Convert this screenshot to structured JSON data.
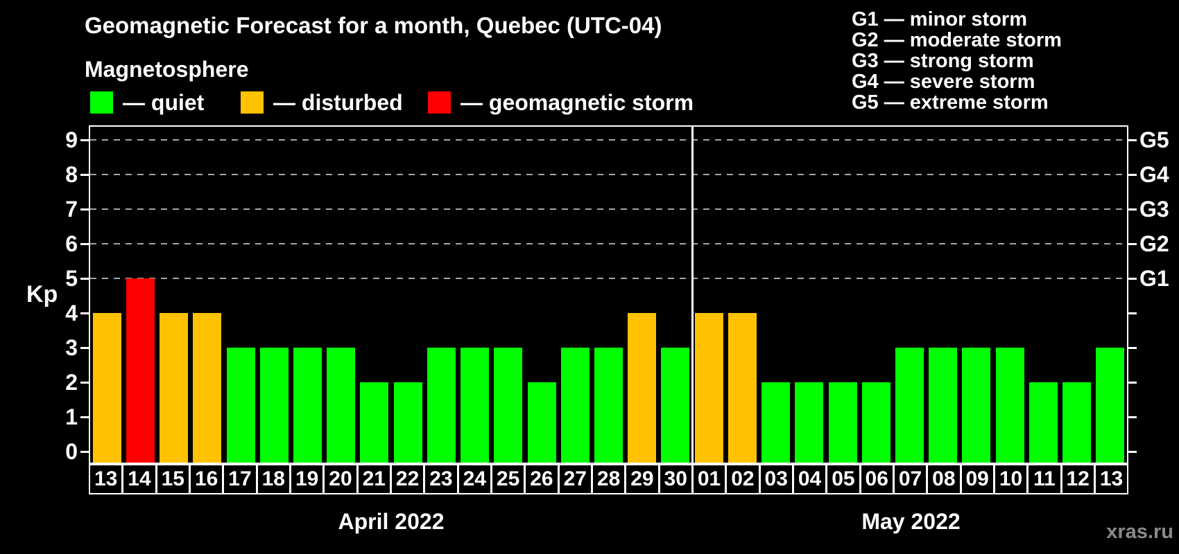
{
  "header": {
    "title": "Geomagnetic Forecast for a month, Quebec (UTC-04)",
    "subtitle": "Magnetosphere"
  },
  "legend": {
    "items": [
      {
        "key": "quiet",
        "label": "— quiet",
        "color": "#00FF00"
      },
      {
        "key": "disturbed",
        "label": "— disturbed",
        "color": "#FFC200"
      },
      {
        "key": "storm",
        "label": "— geomagnetic storm",
        "color": "#FF0000"
      }
    ]
  },
  "g_legend": {
    "items": [
      {
        "label": "G1 — minor storm"
      },
      {
        "label": "G2 — moderate storm"
      },
      {
        "label": "G3 — strong storm"
      },
      {
        "label": "G4 — severe storm"
      },
      {
        "label": "G5 — extreme storm"
      }
    ]
  },
  "axis": {
    "ylabel": "Kp",
    "yticks": [
      "0",
      "1",
      "2",
      "3",
      "4",
      "5",
      "6",
      "7",
      "8",
      "9"
    ],
    "right_labels": [
      {
        "kp": 5,
        "label": "G1"
      },
      {
        "kp": 6,
        "label": "G2"
      },
      {
        "kp": 7,
        "label": "G3"
      },
      {
        "kp": 8,
        "label": "G4"
      },
      {
        "kp": 9,
        "label": "G5"
      }
    ]
  },
  "watermark": "xras.ru",
  "chart_data": {
    "type": "bar",
    "title": "Geomagnetic Forecast for a month, Quebec (UTC-04)",
    "ylabel": "Kp",
    "ylim": [
      0,
      9
    ],
    "grid": "dashed horizontal lines at storm levels only",
    "gridlines_at": [
      5,
      6,
      7,
      8,
      9
    ],
    "months": [
      {
        "label": "April 2022",
        "bars": [
          {
            "day": "13",
            "kp": 4,
            "status": "disturbed"
          },
          {
            "day": "14",
            "kp": 5,
            "status": "storm"
          },
          {
            "day": "15",
            "kp": 4,
            "status": "disturbed"
          },
          {
            "day": "16",
            "kp": 4,
            "status": "disturbed"
          },
          {
            "day": "17",
            "kp": 3,
            "status": "quiet"
          },
          {
            "day": "18",
            "kp": 3,
            "status": "quiet"
          },
          {
            "day": "19",
            "kp": 3,
            "status": "quiet"
          },
          {
            "day": "20",
            "kp": 3,
            "status": "quiet"
          },
          {
            "day": "21",
            "kp": 2,
            "status": "quiet"
          },
          {
            "day": "22",
            "kp": 2,
            "status": "quiet"
          },
          {
            "day": "23",
            "kp": 3,
            "status": "quiet"
          },
          {
            "day": "24",
            "kp": 3,
            "status": "quiet"
          },
          {
            "day": "25",
            "kp": 3,
            "status": "quiet"
          },
          {
            "day": "26",
            "kp": 2,
            "status": "quiet"
          },
          {
            "day": "27",
            "kp": 3,
            "status": "quiet"
          },
          {
            "day": "28",
            "kp": 3,
            "status": "quiet"
          },
          {
            "day": "29",
            "kp": 4,
            "status": "disturbed"
          },
          {
            "day": "30",
            "kp": 3,
            "status": "quiet"
          }
        ]
      },
      {
        "label": "May 2022",
        "bars": [
          {
            "day": "01",
            "kp": 4,
            "status": "disturbed"
          },
          {
            "day": "02",
            "kp": 4,
            "status": "disturbed"
          },
          {
            "day": "03",
            "kp": 2,
            "status": "quiet"
          },
          {
            "day": "04",
            "kp": 2,
            "status": "quiet"
          },
          {
            "day": "05",
            "kp": 2,
            "status": "quiet"
          },
          {
            "day": "06",
            "kp": 2,
            "status": "quiet"
          },
          {
            "day": "07",
            "kp": 3,
            "status": "quiet"
          },
          {
            "day": "08",
            "kp": 3,
            "status": "quiet"
          },
          {
            "day": "09",
            "kp": 3,
            "status": "quiet"
          },
          {
            "day": "10",
            "kp": 3,
            "status": "quiet"
          },
          {
            "day": "11",
            "kp": 2,
            "status": "quiet"
          },
          {
            "day": "12",
            "kp": 2,
            "status": "quiet"
          },
          {
            "day": "13",
            "kp": 3,
            "status": "quiet"
          }
        ]
      }
    ]
  }
}
